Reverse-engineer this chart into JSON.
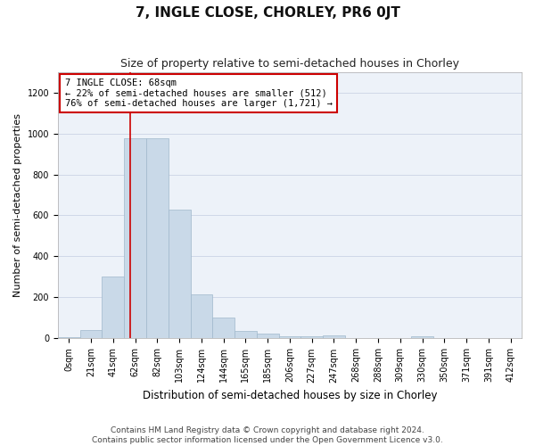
{
  "title": "7, INGLE CLOSE, CHORLEY, PR6 0JT",
  "subtitle": "Size of property relative to semi-detached houses in Chorley",
  "xlabel": "Distribution of semi-detached houses by size in Chorley",
  "ylabel": "Number of semi-detached properties",
  "footer_line1": "Contains HM Land Registry data © Crown copyright and database right 2024.",
  "footer_line2": "Contains public sector information licensed under the Open Government Licence v3.0.",
  "bin_labels": [
    "0sqm",
    "21sqm",
    "41sqm",
    "62sqm",
    "82sqm",
    "103sqm",
    "124sqm",
    "144sqm",
    "165sqm",
    "185sqm",
    "206sqm",
    "227sqm",
    "247sqm",
    "268sqm",
    "288sqm",
    "309sqm",
    "330sqm",
    "350sqm",
    "371sqm",
    "391sqm",
    "412sqm"
  ],
  "bar_values": [
    5,
    40,
    300,
    975,
    975,
    630,
    215,
    100,
    35,
    25,
    10,
    10,
    15,
    0,
    0,
    0,
    10,
    0,
    0,
    0,
    0
  ],
  "bar_color": "#c9d9e8",
  "bar_edge_color": "#a0b8cc",
  "property_sqm": 68,
  "property_label": "7 INGLE CLOSE: 68sqm",
  "pct_smaller": 22,
  "count_smaller": 512,
  "pct_larger": 76,
  "count_larger": 1721,
  "red_line_color": "#cc0000",
  "annotation_box_color": "#cc0000",
  "ylim": [
    0,
    1300
  ],
  "yticks": [
    0,
    200,
    400,
    600,
    800,
    1000,
    1200
  ],
  "grid_color": "#d0d8e8",
  "bg_color": "#edf2f9",
  "title_fontsize": 11,
  "subtitle_fontsize": 9,
  "xlabel_fontsize": 8.5,
  "ylabel_fontsize": 8,
  "tick_fontsize": 7,
  "footer_fontsize": 6.5,
  "ann_fontsize": 7.5
}
